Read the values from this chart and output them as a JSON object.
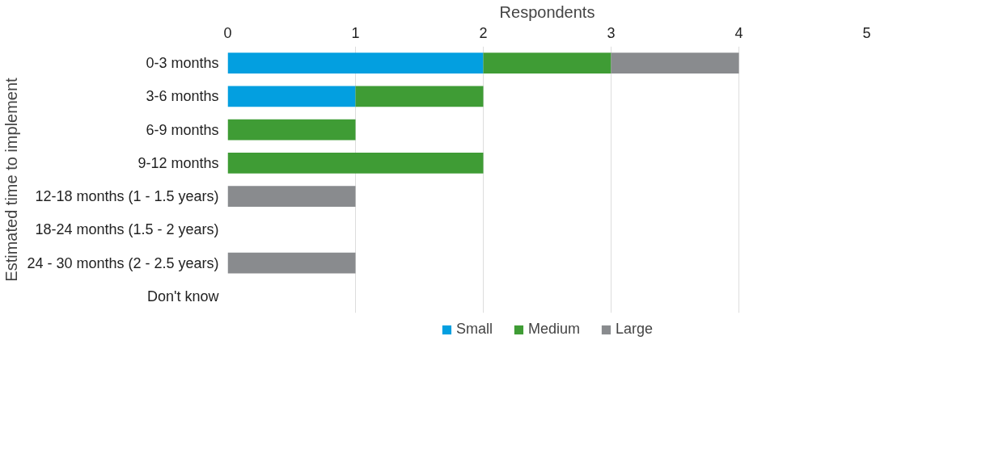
{
  "chart_data": {
    "type": "bar",
    "orientation": "horizontal",
    "stacked": true,
    "xlabel": "Respondents",
    "ylabel": "Estimated time to implement",
    "categories": [
      "0-3 months",
      "3-6 months",
      "6-9 months",
      "9-12 months",
      "12-18 months (1 - 1.5 years)",
      "18-24 months (1.5 - 2 years)",
      "24 - 30 months (2 - 2.5 years)",
      "Don't know"
    ],
    "series": [
      {
        "name": "Small",
        "color": "#039fe0",
        "values": [
          2,
          1,
          null,
          null,
          null,
          null,
          null,
          null
        ]
      },
      {
        "name": "Medium",
        "color": "#3f9c35",
        "values": [
          1,
          1,
          1,
          2,
          null,
          null,
          null,
          null
        ]
      },
      {
        "name": "Large",
        "color": "#898b8e",
        "values": [
          1,
          null,
          null,
          null,
          1,
          null,
          1,
          null
        ]
      }
    ],
    "xlim": [
      0,
      5
    ],
    "xticks": [
      0,
      1,
      2,
      3,
      4,
      5
    ],
    "grid": "x",
    "legend": "bottom"
  }
}
